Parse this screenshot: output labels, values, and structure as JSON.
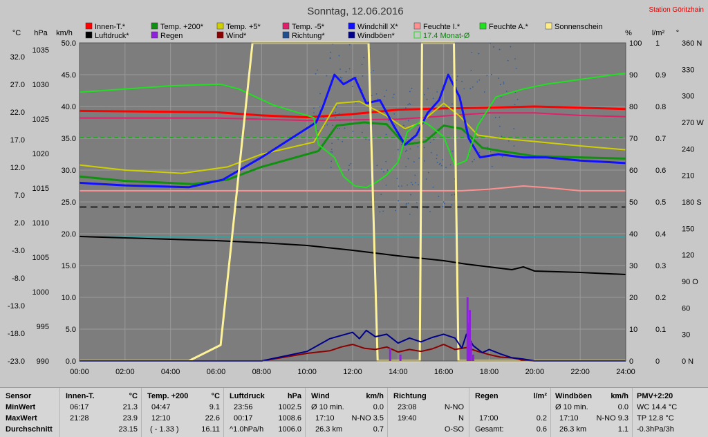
{
  "title": "Sonntag, 12.06.2016",
  "station": "Station Göritzhain",
  "colors": {
    "plot_bg": "#7d7d7d",
    "outer_bg": "#c8c8c8",
    "grid": "#9a9a9a",
    "station": "#e00000"
  },
  "axis_units": {
    "temp": "°C",
    "pressure": "hPa",
    "wind": "km/h",
    "humidity": "%",
    "rain": "l/m²",
    "direction": "°"
  },
  "legend": [
    {
      "label": "Innen-T.*",
      "color": "#ff0000"
    },
    {
      "label": "Temp. +200*",
      "color": "#109010"
    },
    {
      "label": "Temp. +5*",
      "color": "#d0d000"
    },
    {
      "label": "Temp. -5*",
      "color": "#e0206a"
    },
    {
      "label": "Windchill X*",
      "color": "#1010ff"
    },
    {
      "label": "Feuchte I.*",
      "color": "#ff9090"
    },
    {
      "label": "Feuchte A.*",
      "color": "#20e020"
    },
    {
      "label": "Sonnenschein",
      "color": "#ffee88"
    },
    {
      "label": "Luftdruck*",
      "color": "#000000"
    },
    {
      "label": "Regen",
      "color": "#9020e0"
    },
    {
      "label": "Wind*",
      "color": "#8b0000"
    },
    {
      "label": "Richtung*",
      "color": "#1f4f8f"
    },
    {
      "label": "Windböen*",
      "color": "#00008b"
    },
    {
      "label": "17.4 Monat-Ø",
      "color": "#20e020",
      "outline": true
    }
  ],
  "chart_data": {
    "type": "line",
    "x_ticks": [
      "00:00",
      "02:00",
      "04:00",
      "06:00",
      "08:00",
      "10:00",
      "12:00",
      "14:00",
      "16:00",
      "18:00",
      "20:00",
      "22:00",
      "24:00"
    ],
    "axes": {
      "temp_ticks": [
        "32.0",
        "27.0",
        "22.0",
        "17.0",
        "12.0",
        "7.0",
        "2.0",
        "-3.0",
        "-8.0",
        "-13.0",
        "-18.0",
        "-23.0"
      ],
      "pressure_ticks": [
        "1035",
        "1030",
        "1025",
        "1020",
        "1015",
        "1010",
        "1005",
        "1000",
        "995",
        "990"
      ],
      "wind_ticks": [
        "50.0",
        "45.0",
        "40.0",
        "35.0",
        "30.0",
        "25.0",
        "20.0",
        "15.0",
        "10.0",
        "5.0",
        "0.0"
      ],
      "humidity_ticks": [
        "100",
        "90",
        "80",
        "70",
        "60",
        "50",
        "40",
        "30",
        "20",
        "10",
        "0"
      ],
      "rain_ticks": [
        "1",
        "0.9",
        "0.8",
        "0.7",
        "0.6",
        "0.5",
        "0.4",
        "0.3",
        "0.2",
        "0.1",
        "0"
      ],
      "direction_ticks": [
        "360 N",
        "330",
        "300",
        "270 W",
        "240",
        "210",
        "180 S",
        "150",
        "120",
        "90 O",
        "60",
        "30",
        "0 N"
      ],
      "wind_ylim": [
        0,
        50
      ],
      "humidity_ylim": [
        0,
        100
      ],
      "pressure_ylim": [
        990,
        1036
      ]
    },
    "series": [
      {
        "name": "Innen-T.*",
        "scale": "wind",
        "color": "#ff0000",
        "width": 3,
        "x": [
          0,
          6,
          8,
          10,
          12,
          14,
          16,
          18,
          20,
          22,
          24
        ],
        "y": [
          39.3,
          39.1,
          38.6,
          38.3,
          38.8,
          39.5,
          39.7,
          39.8,
          40.0,
          39.8,
          39.6
        ]
      },
      {
        "name": "Temp. -5*",
        "scale": "wind",
        "color": "#e0206a",
        "width": 2,
        "x": [
          0,
          6,
          10,
          14,
          16,
          18,
          20,
          22,
          24
        ],
        "y": [
          38.2,
          38.2,
          37.8,
          38.0,
          38.5,
          39.0,
          39.0,
          38.6,
          38.4
        ]
      },
      {
        "name": "Temp. +5*",
        "scale": "wind",
        "color": "#d0d000",
        "width": 2,
        "x": [
          0,
          2,
          4.5,
          6.5,
          8,
          10.3,
          11.3,
          12.3,
          13.5,
          14.3,
          15,
          16,
          16.7,
          17.5,
          18.5,
          20,
          22,
          24
        ],
        "y": [
          30.8,
          30.0,
          29.5,
          30.5,
          32.5,
          34.4,
          40.5,
          40.8,
          38.5,
          36.5,
          37.5,
          40.5,
          38.5,
          35.5,
          35.0,
          34.5,
          33.8,
          33.2
        ]
      },
      {
        "name": "Temp. +200*",
        "scale": "wind",
        "color": "#109010",
        "width": 3,
        "x": [
          0,
          2,
          5,
          6.5,
          8,
          10.5,
          11.3,
          12.5,
          13.5,
          14.3,
          15.2,
          16,
          16.8,
          17.7,
          18.5,
          20,
          22,
          24
        ],
        "y": [
          29.0,
          28.3,
          27.8,
          28.5,
          30.5,
          33.0,
          37.0,
          37.5,
          37.2,
          34.0,
          34.5,
          37.0,
          36.5,
          33.5,
          33.0,
          32.2,
          32.0,
          31.8
        ]
      },
      {
        "name": "Windchill X*",
        "scale": "wind",
        "color": "#1010ff",
        "width": 3,
        "x": [
          0,
          2,
          4.8,
          6.3,
          8,
          10.4,
          10.7,
          11.2,
          11.6,
          12.1,
          12.6,
          13.2,
          13.8,
          14.3,
          14.8,
          15.3,
          15.8,
          16.2,
          16.7,
          17.1,
          17.6,
          18.4,
          19.5,
          20.5,
          22,
          24
        ],
        "y": [
          28.0,
          27.6,
          27.3,
          28.5,
          32.0,
          37.5,
          40.0,
          45.0,
          43.5,
          44.5,
          40.5,
          41.0,
          37.0,
          34.0,
          35.5,
          39.0,
          41.0,
          45.0,
          41.5,
          35.0,
          32.0,
          32.5,
          32.0,
          32.0,
          31.5,
          31.1
        ]
      },
      {
        "name": "Feuchte A.*",
        "scale": "humidity",
        "color": "#20e020",
        "width": 2,
        "x": [
          0,
          2,
          4,
          6.2,
          7,
          8.5,
          10.3,
          10.5,
          11.2,
          11.6,
          12.1,
          12.6,
          13,
          13.5,
          14,
          14.4,
          15,
          15.3,
          16,
          16.5,
          17,
          17.5,
          18.3,
          19.5,
          20.5,
          22,
          24
        ],
        "y": [
          84.5,
          85.5,
          86.5,
          87.0,
          85.5,
          80.5,
          76.5,
          68.0,
          64.0,
          58.0,
          55.0,
          54.5,
          56.0,
          58.5,
          62.5,
          72.0,
          75.5,
          74.5,
          70.5,
          61.5,
          63.0,
          74.0,
          83.0,
          85.5,
          87.0,
          88.5,
          90.5
        ]
      },
      {
        "name": "Feuchte I.*",
        "scale": "humidity",
        "color": "#ff9090",
        "width": 2,
        "x": [
          0,
          12,
          14,
          16.8,
          18,
          19.5,
          20.5,
          22,
          24
        ],
        "y": [
          53.5,
          53.5,
          53.5,
          53.5,
          54.0,
          55.0,
          54.5,
          53.5,
          53.5
        ]
      },
      {
        "name": "Luftdruck*",
        "scale": "pressure",
        "color": "#000000",
        "width": 2,
        "x": [
          0,
          2,
          4,
          6,
          8,
          10,
          12,
          14,
          16,
          17,
          18,
          19,
          19.5,
          20,
          22,
          24
        ],
        "y": [
          1008.0,
          1007.8,
          1007.6,
          1007.4,
          1007.1,
          1006.7,
          1006.0,
          1005.2,
          1004.5,
          1004.0,
          1003.6,
          1003.2,
          1003.6,
          1003.0,
          1002.8,
          1002.5
        ]
      },
      {
        "name": "Sonnenschein",
        "scale": "wind",
        "color": "#fff39a",
        "width": 3,
        "x": [
          0,
          4.8,
          6.2,
          7.6,
          12.7,
          12.9,
          13.1,
          14.95,
          15.05,
          16.45,
          16.65,
          24
        ],
        "y": [
          0,
          0,
          2.5,
          50,
          50,
          25,
          0,
          0,
          50,
          50,
          0,
          0
        ]
      },
      {
        "name": "Wind*",
        "scale": "wind",
        "color": "#8b0000",
        "width": 2,
        "x": [
          0,
          8,
          10,
          11,
          11.5,
          12,
          12.5,
          13,
          13.5,
          14,
          14.5,
          15,
          15.5,
          16,
          16.5,
          17,
          17.5,
          18,
          18.5,
          19,
          19.5,
          20,
          24
        ],
        "y": [
          0,
          0,
          1.2,
          1.6,
          2.2,
          2.6,
          2.0,
          1.8,
          2.2,
          1.4,
          1.8,
          1.5,
          1.9,
          2.6,
          1.8,
          2.1,
          1.5,
          1.0,
          0.6,
          0.5,
          0.1,
          0,
          0
        ]
      },
      {
        "name": "Windböen*",
        "scale": "wind",
        "color": "#00008b",
        "width": 2,
        "x": [
          0,
          8,
          10,
          10.5,
          11,
          11.5,
          12,
          12.3,
          12.6,
          13,
          13.5,
          14,
          14.5,
          15,
          15.5,
          16,
          16.5,
          16.8,
          17,
          17.3,
          17.7,
          18,
          18.5,
          19,
          19.5,
          20,
          24
        ],
        "y": [
          0,
          0,
          1.5,
          2.5,
          3.5,
          4.0,
          4.5,
          3.5,
          4.8,
          3.8,
          4.2,
          2.8,
          3.6,
          3.0,
          3.7,
          4.2,
          3.6,
          2.0,
          4.2,
          2.4,
          1.3,
          1.8,
          1.1,
          0.5,
          0.3,
          0,
          0
        ]
      },
      {
        "name": "Regen",
        "scale": "rain",
        "color": "#9020e0",
        "width": 3,
        "x": [
          13.6,
          13.65,
          13.7,
          14.05,
          14.1,
          17.0,
          17.05,
          17.1,
          17.15,
          17.2,
          17.3,
          17.35
        ],
        "y": [
          0,
          0.04,
          0,
          0,
          0.02,
          0,
          0.2,
          0.12,
          0.16,
          0.06,
          0.02,
          0
        ],
        "bars": true
      }
    ],
    "reference_lines": [
      {
        "name": "17.4 Monat-Ø",
        "scale": "temp",
        "value": 17.4,
        "color": "#20a020",
        "dash": "6,4"
      },
      {
        "name": "Luftdruck-Referenz",
        "scale": "wind",
        "value": 24.2,
        "color": "#000000",
        "dash": "10,6"
      },
      {
        "name": "Taupunkt-Referenz",
        "scale": "wind",
        "value": 19.5,
        "color": "#3fa0a0",
        "dash": ""
      }
    ],
    "direction_scatter": {
      "from": 10.3,
      "to": 19.5
    }
  },
  "stats": {
    "sensor": {
      "header": "Sensor",
      "rows": [
        "MinWert",
        "MaxWert",
        "Durchschnitt"
      ]
    },
    "innen": {
      "header": "Innen-T.",
      "unit": "°C",
      "time": [
        "06:17",
        "21:28",
        ""
      ],
      "val": [
        "21.3",
        "23.9",
        "23.15"
      ]
    },
    "temp200": {
      "header": "Temp. +200",
      "unit": "°C",
      "time": [
        "04:47",
        "12:10",
        "( - 1.33 )"
      ],
      "val": [
        "9.1",
        "22.6",
        "16.11"
      ]
    },
    "luftdruck": {
      "header": "Luftdruck",
      "unit": "hPa",
      "time": [
        "23:56",
        "00:17",
        "^1.0hPa/h"
      ],
      "val": [
        "1002.5",
        "1008.6",
        "1006.0"
      ]
    },
    "wind": {
      "header": "Wind",
      "unit": "km/h",
      "time": [
        "Ø 10 min.",
        "17:10",
        "26.3 km"
      ],
      "val": [
        "0.0",
        "N-NO 3.5",
        "0.7"
      ]
    },
    "richtung": {
      "header": "Richtung",
      "unit": "",
      "time": [
        "23:08",
        "19:40",
        ""
      ],
      "val": [
        "N-NO",
        "N",
        "O-SO"
      ]
    },
    "regen": {
      "header": "Regen",
      "unit": "l/m²",
      "time": [
        "",
        "17:00",
        "Gesamt:"
      ],
      "val": [
        "",
        "0.2",
        "0.6"
      ]
    },
    "boeen": {
      "header": "Windböen",
      "unit": "km/h",
      "time": [
        "Ø 10 min.",
        "17:10",
        "26.3 km"
      ],
      "val": [
        "0.0",
        "N-NO 9.3",
        "1.1"
      ]
    },
    "pmv": {
      "header": "PMV+2:20",
      "lines": [
        "WC 14.4 °C",
        "TP 12.8 °C",
        "-0.3hPa/3h"
      ]
    }
  }
}
